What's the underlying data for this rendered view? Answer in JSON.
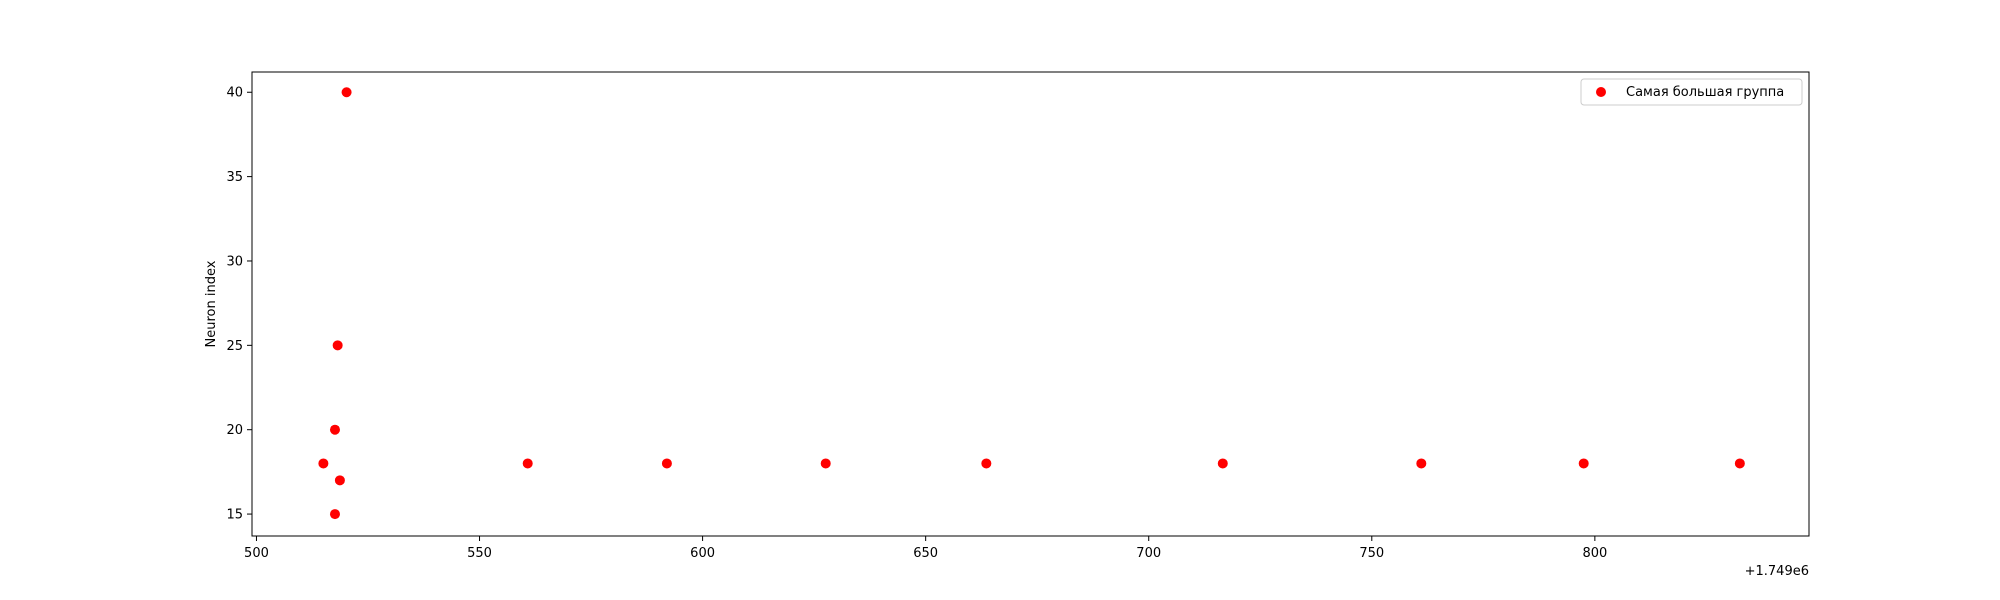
{
  "chart_data": {
    "type": "scatter",
    "title": "",
    "xlabel": "",
    "ylabel": "Neuron index",
    "x_offset_label": "+1.749e6",
    "xlim": [
      499,
      848
    ],
    "ylim": [
      13.7,
      41.2
    ],
    "x_ticks": [
      500,
      550,
      600,
      650,
      700,
      750,
      800
    ],
    "y_ticks": [
      15,
      20,
      25,
      30,
      35,
      40
    ],
    "grid": false,
    "legend_position": "top-right",
    "series": [
      {
        "name": "Самая большая группа",
        "color": "#ff0000",
        "points": [
          {
            "x": 515.0,
            "y": 18
          },
          {
            "x": 517.6,
            "y": 20
          },
          {
            "x": 517.6,
            "y": 15
          },
          {
            "x": 518.2,
            "y": 25
          },
          {
            "x": 518.7,
            "y": 17
          },
          {
            "x": 520.2,
            "y": 40
          },
          {
            "x": 560.8,
            "y": 18
          },
          {
            "x": 592.0,
            "y": 18
          },
          {
            "x": 627.6,
            "y": 18
          },
          {
            "x": 663.6,
            "y": 18
          },
          {
            "x": 716.6,
            "y": 18
          },
          {
            "x": 761.1,
            "y": 18
          },
          {
            "x": 797.5,
            "y": 18
          },
          {
            "x": 832.5,
            "y": 18
          }
        ]
      }
    ]
  }
}
